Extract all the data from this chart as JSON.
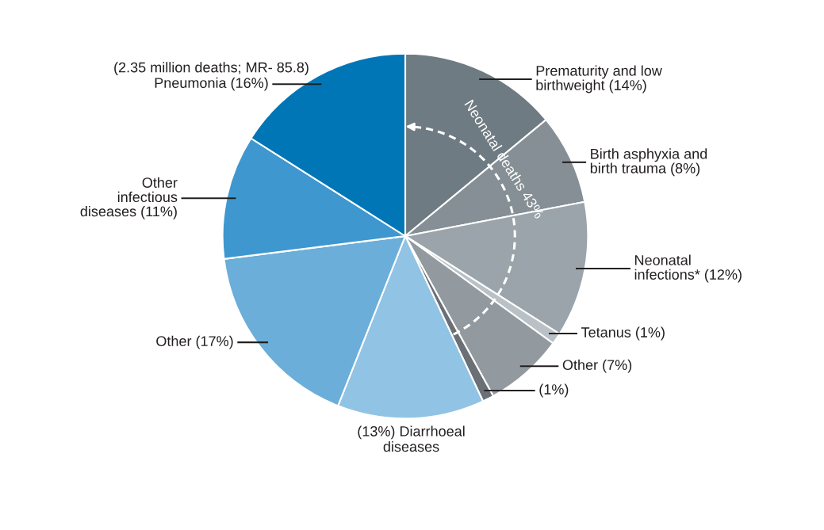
{
  "chart_data": {
    "type": "pie",
    "categories": [
      "Prematurity and low\nbirthweight (14%)",
      "Birth asphyxia and\nbirth trauma (8%)",
      "Neonatal\ninfections* (12%)",
      "Tetanus (1%)",
      "Other (7%)",
      "(1%)",
      "(13%) Diarrhoeal\ndiseases",
      "Other (17%)",
      "Other\ninfectious\ndiseases (11%)",
      "Pneumonia (16%)"
    ],
    "values": [
      14,
      8,
      12,
      1,
      7,
      1,
      13,
      17,
      11,
      16
    ],
    "colors": [
      "#6f7b82",
      "#858f95",
      "#9aa4aa",
      "#b9c1c6",
      "#939a9f",
      "#6a7075",
      "#91c3e4",
      "#6aaed9",
      "#3e97cf",
      "#0076b6"
    ],
    "annotations": [
      "(2.35 million deaths; MR- 85.8)",
      "Neonatal deaths 43%"
    ],
    "legend": false
  }
}
